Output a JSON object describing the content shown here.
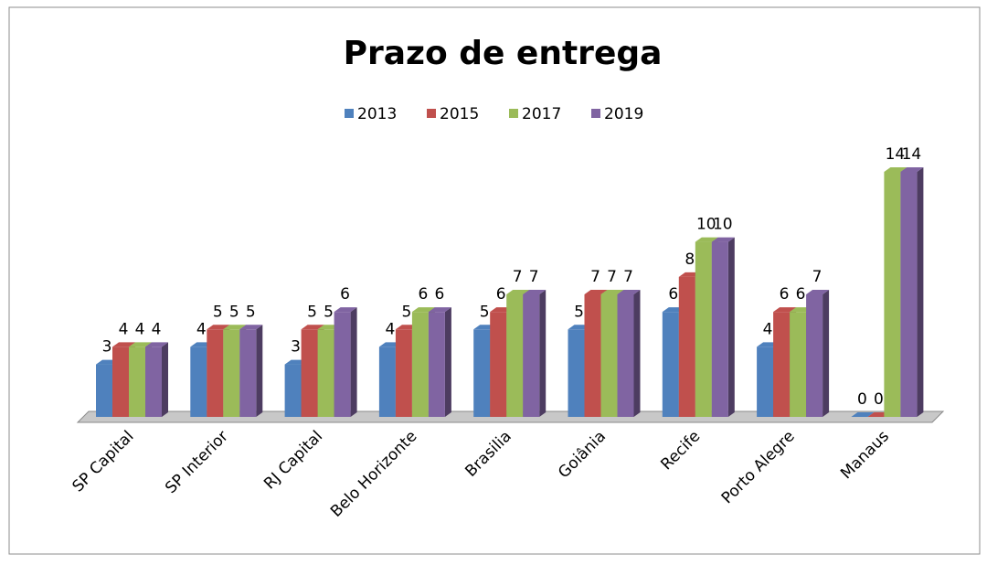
{
  "chart_data": {
    "type": "bar3d",
    "title": "Prazo de entrega",
    "categories": [
      "SP Capital",
      "SP Interior",
      "RJ Capital",
      "Belo Horizonte",
      "Brasilia",
      "Goiânia",
      "Recife",
      "Porto Alegre",
      "Manaus"
    ],
    "series": [
      {
        "name": "2013",
        "color": "#4f81bd",
        "values": [
          3,
          4,
          3,
          4,
          5,
          5,
          6,
          4,
          0
        ]
      },
      {
        "name": "2015",
        "color": "#c0504d",
        "values": [
          4,
          5,
          5,
          5,
          6,
          7,
          8,
          6,
          0
        ]
      },
      {
        "name": "2017",
        "color": "#9bbb59",
        "values": [
          4,
          5,
          5,
          6,
          7,
          7,
          10,
          6,
          14
        ]
      },
      {
        "name": "2019",
        "color": "#8064a2",
        "values": [
          4,
          5,
          6,
          6,
          7,
          7,
          10,
          7,
          14
        ]
      }
    ],
    "legend": "top"
  }
}
